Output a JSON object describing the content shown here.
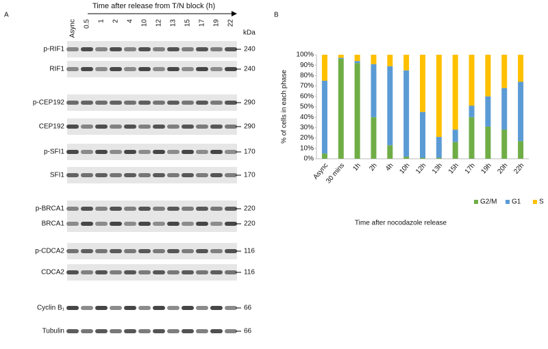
{
  "panel_a": {
    "label": "A",
    "header": "Time after release from T/N block (h)",
    "unit": "kDa",
    "lanes": [
      "Async",
      "0.5",
      "1",
      "2",
      "4",
      "10",
      "12",
      "13",
      "15",
      "17",
      "19",
      "22"
    ],
    "blots": [
      {
        "name": "p-RIF1",
        "marker": "240"
      },
      {
        "name": "RIF1",
        "marker": "240"
      },
      {
        "name": "p-CEP192",
        "marker": "290"
      },
      {
        "name": "CEP192",
        "marker": "290"
      },
      {
        "name": "p-SFI1",
        "marker": "170"
      },
      {
        "name": "SFI1",
        "marker": "170"
      },
      {
        "name": "p-BRCA1",
        "marker": "220"
      },
      {
        "name": "BRCA1",
        "marker": "220"
      },
      {
        "name": "p-CDCA2",
        "marker": "116"
      },
      {
        "name": "CDCA2",
        "marker": "116"
      },
      {
        "name": "Cyclin B₁",
        "marker": "66"
      },
      {
        "name": "Tubulin",
        "marker": "66"
      }
    ]
  },
  "chart_data": {
    "type": "stacked_bar",
    "panel_label": "B",
    "xlabel": "Time after nocodazole release",
    "ylabel": "% of cells in each phase",
    "categories": [
      "Async",
      "30 mins",
      "1h",
      "2h",
      "4h",
      "10h",
      "12h",
      "13h",
      "15h",
      "17h",
      "19h",
      "20h",
      "22h"
    ],
    "series": [
      {
        "name": "G2/M",
        "color": "#70ad47",
        "values": [
          5,
          96,
          92,
          40,
          13,
          2,
          1,
          1,
          16,
          40,
          31,
          28,
          17
        ]
      },
      {
        "name": "G1",
        "color": "#5b9bd5",
        "values": [
          70,
          1,
          2,
          51,
          76,
          83,
          44,
          20,
          12,
          11,
          29,
          40,
          57
        ]
      },
      {
        "name": "S",
        "color": "#ffc000",
        "values": [
          25,
          3,
          6,
          9,
          11,
          15,
          55,
          79,
          72,
          49,
          40,
          32,
          26
        ]
      }
    ],
    "ylim": [
      0,
      100
    ],
    "yticks": [
      {
        "value": 0,
        "label": "0%"
      },
      {
        "value": 10,
        "label": "10%"
      },
      {
        "value": 20,
        "label": "20%"
      },
      {
        "value": 30,
        "label": "30%"
      },
      {
        "value": 40,
        "label": "40%"
      },
      {
        "value": 50,
        "label": "50%"
      },
      {
        "value": 60,
        "label": "60%"
      },
      {
        "value": 70,
        "label": "70%"
      },
      {
        "value": 80,
        "label": "80%"
      },
      {
        "value": 90,
        "label": "90%"
      },
      {
        "value": 100,
        "label": "100%"
      }
    ],
    "grid": false,
    "legend": "bottom"
  }
}
